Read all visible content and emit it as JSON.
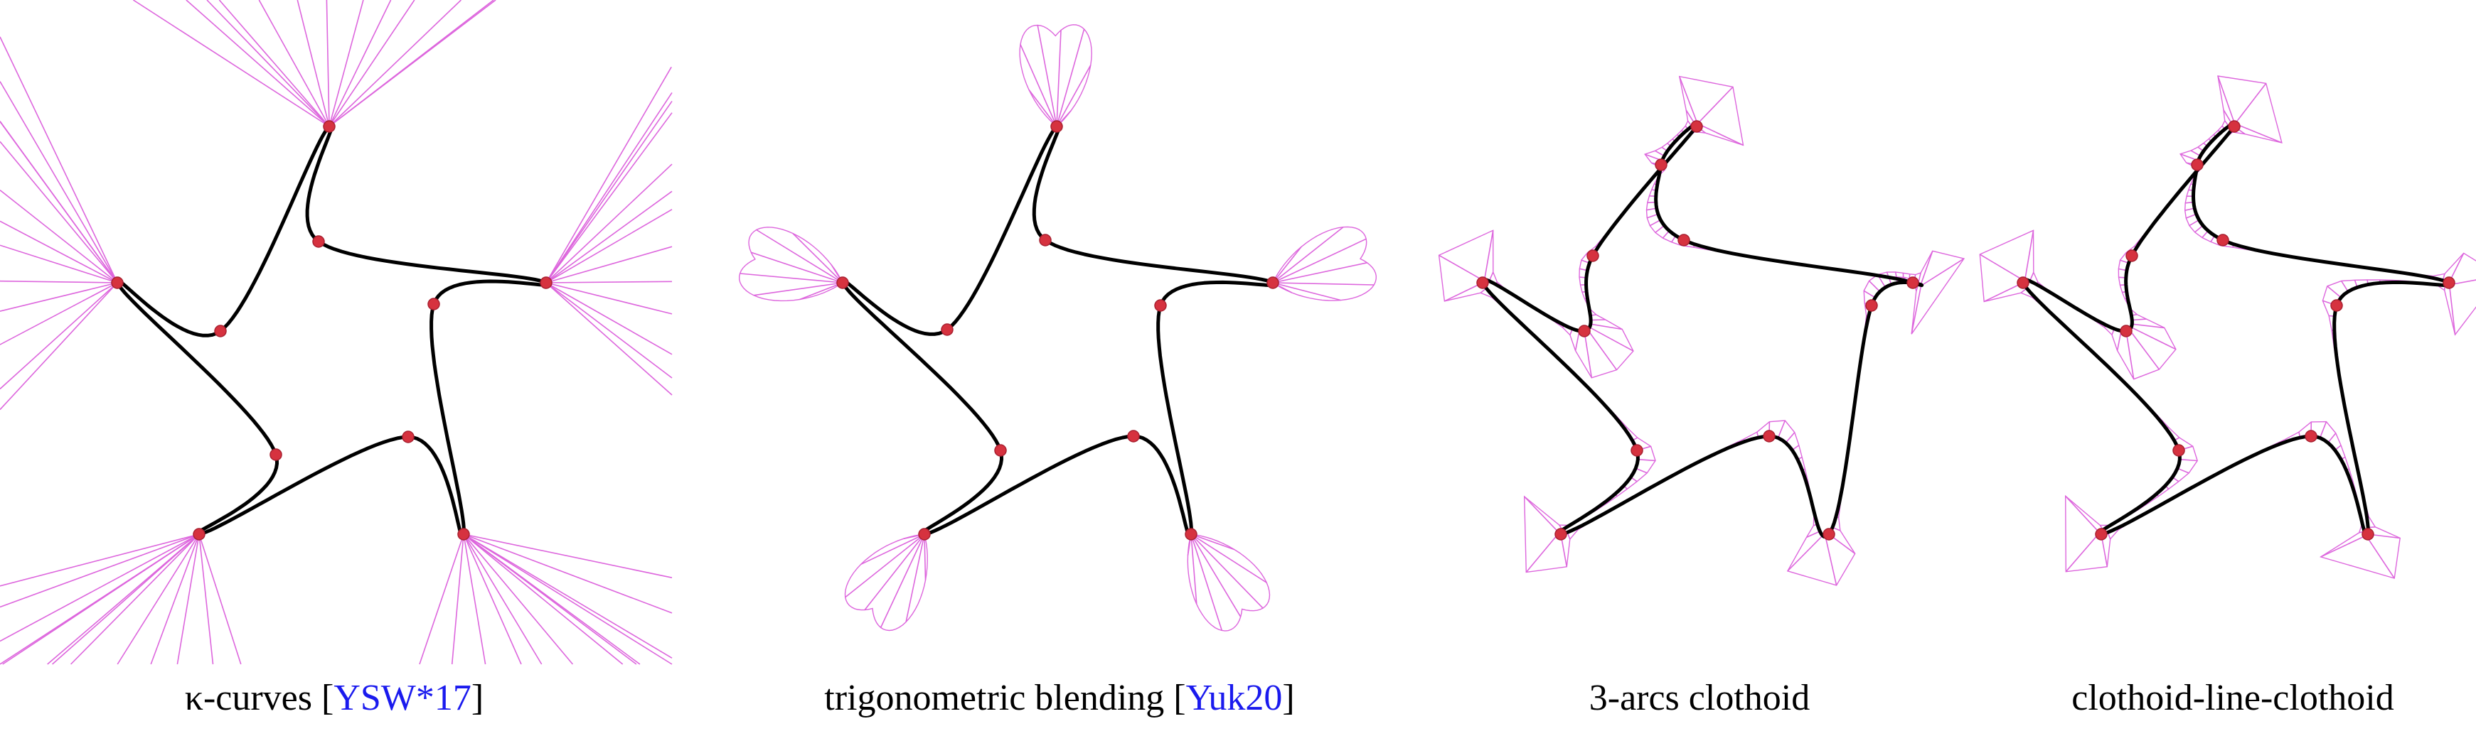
{
  "colors": {
    "curve": "#000000",
    "comb": "#dd66dd",
    "control_point": "#d6323f",
    "citation": "#1a1aee",
    "text": "#000000"
  },
  "panels": [
    {
      "name": "kappa-curves",
      "caption_prefix": "κ-curves [",
      "caption_cite": "YSW*17",
      "caption_suffix": "]"
    },
    {
      "name": "trigonometric-blending",
      "caption_prefix": "trigonometric blending [",
      "caption_cite": "Yuk20",
      "caption_suffix": "]"
    },
    {
      "name": "3-arcs-clothoid",
      "caption_prefix": "3-arcs clothoid",
      "caption_cite": "",
      "caption_suffix": ""
    },
    {
      "name": "clothoid-line-clothoid",
      "caption_prefix": "clothoid-line-clothoid",
      "caption_cite": "",
      "caption_suffix": ""
    }
  ]
}
